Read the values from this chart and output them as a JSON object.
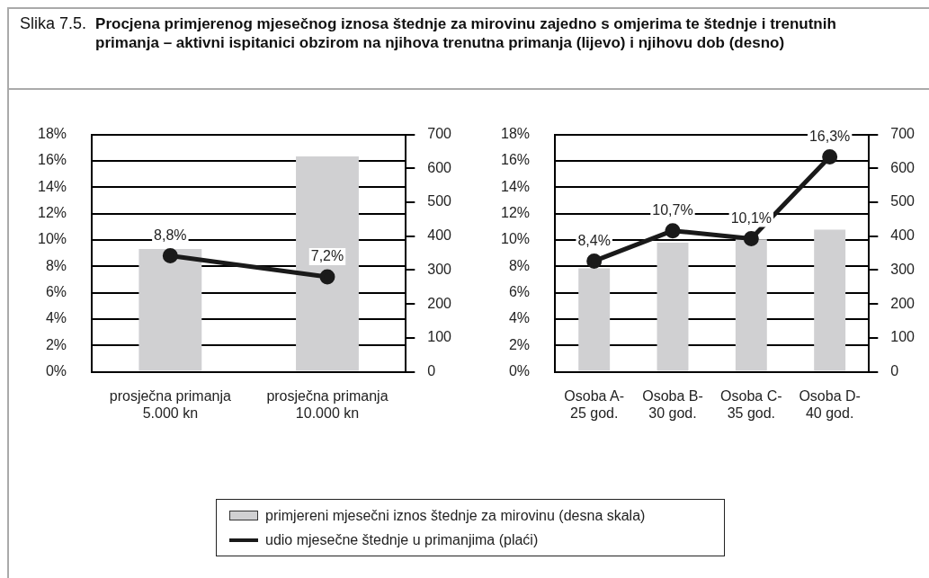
{
  "chart_data": [
    {
      "type": "bar",
      "subtitle": "Slika 7.5.",
      "title": "Procjena primjerenog mjesečnog iznosa štednje za mirovinu zajedno s omjerima te štednje i trenutnih primanja – aktivni ispitanici obzirom na njihova trenutna primanja (lijevo) i njihovu dob (desno)",
      "categories": [
        "prosječna primanja 5.000 kn",
        "prosječna primanja 10.000 kn"
      ],
      "series": [
        {
          "name": "primjereni mjesečni iznos štednje za mirovinu (desna skala)",
          "axis": "y2",
          "color": "#d0d0d2",
          "values": [
            362,
            635
          ]
        },
        {
          "name": "udio mjesečne štednje u primanjima (plaći)",
          "type": "line",
          "color": "#1a1a1a",
          "marker": "circle",
          "values": [
            8.8,
            7.2
          ],
          "value_labels": [
            "8,8%",
            "7,2%"
          ]
        }
      ],
      "ylim": [
        0,
        18
      ],
      "yticks": [
        {
          "value": 0,
          "label": "0%"
        },
        {
          "value": 2,
          "label": "2%"
        },
        {
          "value": 4,
          "label": "4%"
        },
        {
          "value": 6,
          "label": "6%"
        },
        {
          "value": 8,
          "label": "8%"
        },
        {
          "value": 10,
          "label": "10%"
        },
        {
          "value": 12,
          "label": "12%"
        },
        {
          "value": 14,
          "label": "14%"
        },
        {
          "value": 16,
          "label": "16%"
        },
        {
          "value": 18,
          "label": "18%"
        }
      ],
      "y2lim": [
        0,
        700
      ],
      "y2ticks": [
        0,
        100,
        200,
        300,
        400,
        500,
        600,
        700
      ],
      "grid": "y",
      "legend": "bottom"
    },
    {
      "type": "bar",
      "categories": [
        "Osoba A- 25 god.",
        "Osoba B- 30 god.",
        "Osoba C- 35 god.",
        "Osoba D- 40 god."
      ],
      "series": [
        {
          "axis": "y2",
          "color": "#d0d0d2",
          "values": [
            305,
            381,
            391,
            419
          ]
        },
        {
          "type": "line",
          "color": "#1a1a1a",
          "marker": "circle",
          "values": [
            8.4,
            10.7,
            10.1,
            16.3
          ],
          "value_labels": [
            "8,4%",
            "10,7%",
            "10,1%",
            "16,3%"
          ]
        }
      ],
      "ylim": [
        0,
        18
      ],
      "yticks": [
        {
          "value": 0,
          "label": "0%"
        },
        {
          "value": 2,
          "label": "2%"
        },
        {
          "value": 4,
          "label": "4%"
        },
        {
          "value": 6,
          "label": "6%"
        },
        {
          "value": 8,
          "label": "8%"
        },
        {
          "value": 10,
          "label": "10%"
        },
        {
          "value": 12,
          "label": "12%"
        },
        {
          "value": 14,
          "label": "14%"
        },
        {
          "value": 16,
          "label": "16%"
        },
        {
          "value": 18,
          "label": "18%"
        }
      ],
      "y2lim": [
        0,
        700
      ],
      "y2ticks": [
        0,
        100,
        200,
        300,
        400,
        500,
        600,
        700
      ],
      "grid": "y"
    }
  ]
}
